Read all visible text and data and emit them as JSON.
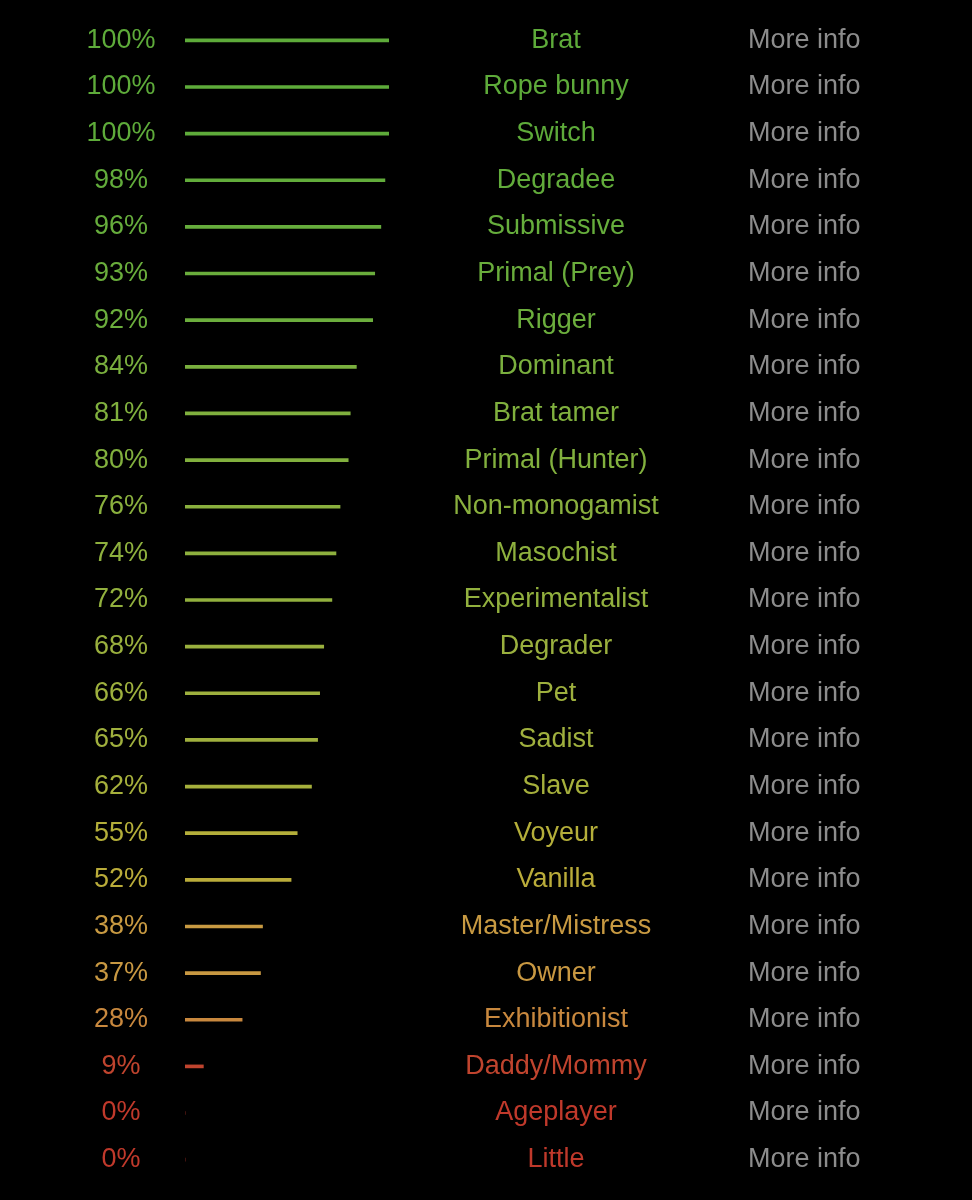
{
  "chart_data": {
    "type": "bar",
    "orientation": "horizontal",
    "categories": [
      "Brat",
      "Rope bunny",
      "Switch",
      "Degradee",
      "Submissive",
      "Primal (Prey)",
      "Rigger",
      "Dominant",
      "Brat tamer",
      "Primal (Hunter)",
      "Non-monogamist",
      "Masochist",
      "Experimentalist",
      "Degrader",
      "Pet",
      "Sadist",
      "Slave",
      "Voyeur",
      "Vanilla",
      "Master/Mistress",
      "Owner",
      "Exhibitionist",
      "Daddy/Mommy",
      "Ageplayer",
      "Little"
    ],
    "values": [
      100,
      100,
      100,
      98,
      96,
      93,
      92,
      84,
      81,
      80,
      76,
      74,
      72,
      68,
      66,
      65,
      62,
      55,
      52,
      38,
      37,
      28,
      9,
      0,
      0
    ],
    "value_labels": [
      "100%",
      "100%",
      "100%",
      "98%",
      "96%",
      "93%",
      "92%",
      "84%",
      "81%",
      "80%",
      "76%",
      "74%",
      "72%",
      "68%",
      "66%",
      "65%",
      "62%",
      "55%",
      "52%",
      "38%",
      "37%",
      "28%",
      "9%",
      "0%",
      "0%"
    ],
    "colors": [
      "#5eab3a",
      "#5eab3a",
      "#5eab3a",
      "#62ac3b",
      "#66ad3c",
      "#6aad3c",
      "#6cae3d",
      "#7aaf3e",
      "#80b03e",
      "#82b03e",
      "#8ab03e",
      "#8eb03e",
      "#92b03e",
      "#9ab03e",
      "#9eb03e",
      "#a0b03e",
      "#a6b03c",
      "#b4ae3a",
      "#baac3a",
      "#c89a42",
      "#c89842",
      "#c8883e",
      "#c0442e",
      "#c0392b",
      "#c0392b"
    ],
    "xlim": [
      0,
      100
    ],
    "annotations": [
      "More info",
      "More info",
      "More info",
      "More info",
      "More info",
      "More info",
      "More info",
      "More info",
      "More info",
      "More info",
      "More info",
      "More info",
      "More info",
      "More info",
      "More info",
      "More info",
      "More info",
      "More info",
      "More info",
      "More info",
      "More info",
      "More info",
      "More info",
      "More info",
      "More info"
    ]
  }
}
